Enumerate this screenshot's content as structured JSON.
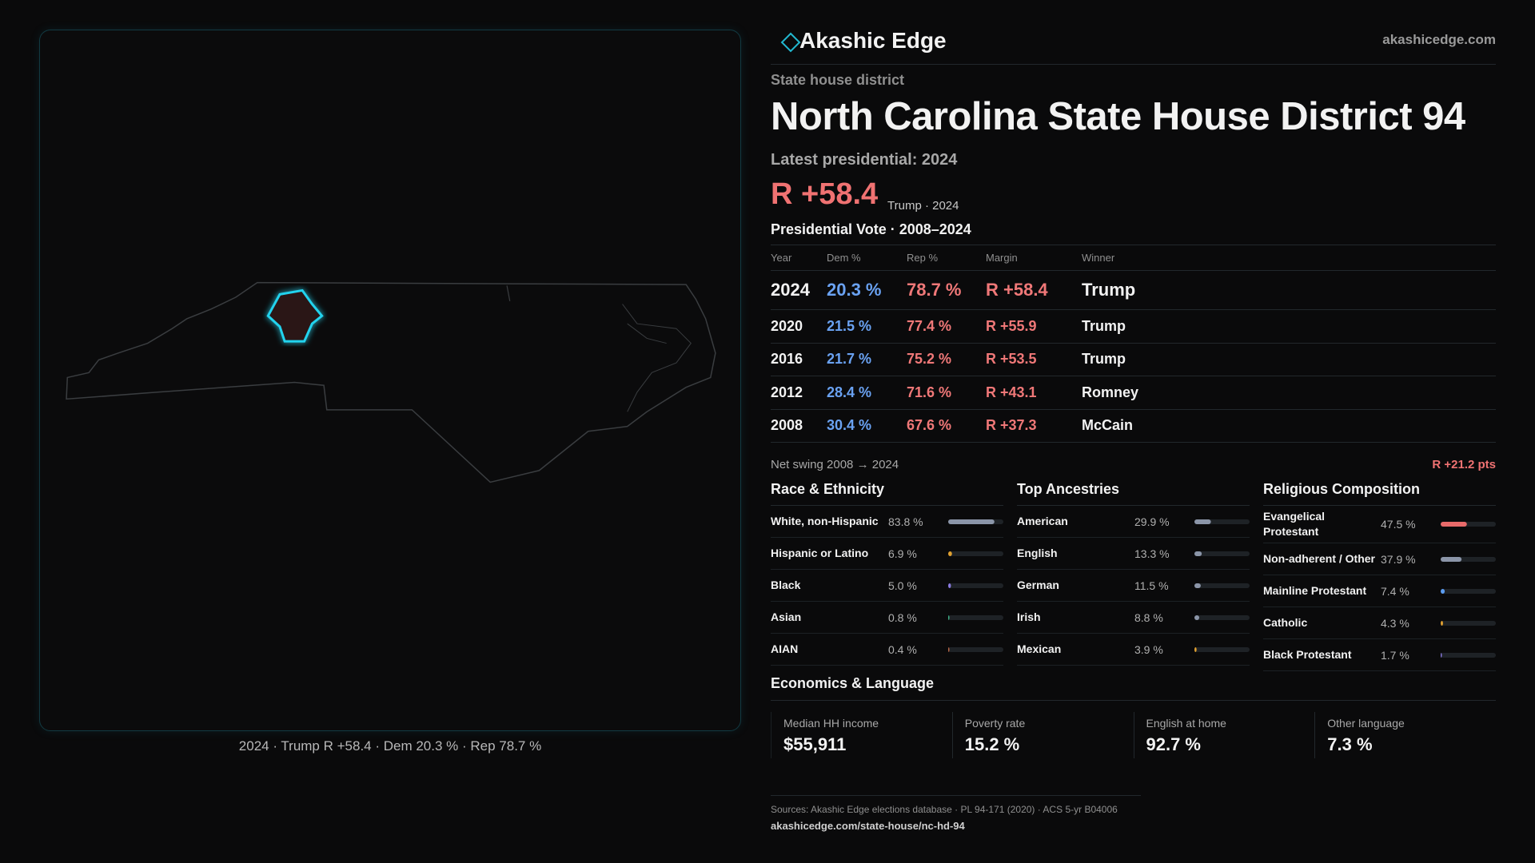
{
  "header": {
    "brand": "Akashic Edge",
    "site": "akashicedge.com"
  },
  "district": {
    "kind": "State house district",
    "title": "North Carolina State House District 94",
    "latest_label": "Latest presidential: 2024",
    "margin": "R +58.4",
    "margin_note": "Trump · 2024"
  },
  "map": {
    "caption": "2024 · Trump R +58.4 · Dem 20.3 % · Rep 78.7 %"
  },
  "vote_table": {
    "title": "Presidential Vote · 2008–2024",
    "columns": [
      "Year",
      "Dem %",
      "Rep %",
      "Margin",
      "Winner"
    ],
    "rows": [
      [
        "2024",
        "20.3 %",
        "78.7 %",
        "R +58.4",
        "Trump"
      ],
      [
        "2020",
        "21.5 %",
        "77.4 %",
        "R +55.9",
        "Trump"
      ],
      [
        "2016",
        "21.7 %",
        "75.2 %",
        "R +53.5",
        "Trump"
      ],
      [
        "2012",
        "28.4 %",
        "71.6 %",
        "R +43.1",
        "Romney"
      ],
      [
        "2008",
        "30.4 %",
        "67.6 %",
        "R +37.3",
        "McCain"
      ]
    ]
  },
  "net_swing": {
    "label": "Net swing 2008 → 2024",
    "value": "R +21.2 pts"
  },
  "race": {
    "title": "Race & Ethnicity",
    "rows": [
      {
        "name": "White, non-Hispanic",
        "value": 83.8,
        "label": "83.8 %",
        "color": "#8b95a8"
      },
      {
        "name": "Hispanic or Latino",
        "value": 6.9,
        "label": "6.9 %",
        "color": "#e0a030"
      },
      {
        "name": "Black",
        "value": 5.0,
        "label": "5.0 %",
        "color": "#8a7ae0"
      },
      {
        "name": "Asian",
        "value": 0.8,
        "label": "0.8 %",
        "color": "#3fb58a"
      },
      {
        "name": "AIAN",
        "value": 0.4,
        "label": "0.4 %",
        "color": "#c06a4a"
      }
    ]
  },
  "ancestry": {
    "title": "Top Ancestries",
    "rows": [
      {
        "name": "American",
        "value": 29.9,
        "label": "29.9 %",
        "color": "#8b95a8"
      },
      {
        "name": "English",
        "value": 13.3,
        "label": "13.3 %",
        "color": "#8b95a8"
      },
      {
        "name": "German",
        "value": 11.5,
        "label": "11.5 %",
        "color": "#8b95a8"
      },
      {
        "name": "Irish",
        "value": 8.8,
        "label": "8.8 %",
        "color": "#8b95a8"
      },
      {
        "name": "Mexican",
        "value": 3.9,
        "label": "3.9 %",
        "color": "#e0a030"
      }
    ]
  },
  "religion": {
    "title": "Religious Composition",
    "rows": [
      {
        "name": "Evangelical Protestant",
        "value": 47.5,
        "label": "47.5 %",
        "color": "#e86a6a"
      },
      {
        "name": "Non-adherent / Other",
        "value": 37.9,
        "label": "37.9 %",
        "color": "#8b95a8"
      },
      {
        "name": "Mainline Protestant",
        "value": 7.4,
        "label": "7.4 %",
        "color": "#5b9cf0"
      },
      {
        "name": "Catholic",
        "value": 4.3,
        "label": "4.3 %",
        "color": "#e0a030"
      },
      {
        "name": "Black Protestant",
        "value": 1.7,
        "label": "1.7 %",
        "color": "#8a7ae0"
      }
    ]
  },
  "economics": {
    "title": "Economics & Language",
    "cards": [
      {
        "label": "Median HH income",
        "value": "$55,911"
      },
      {
        "label": "Poverty rate",
        "value": "15.2 %"
      },
      {
        "label": "English at home",
        "value": "92.7 %"
      },
      {
        "label": "Other language",
        "value": "7.3 %"
      }
    ]
  },
  "footer": {
    "sources": "Sources: Akashic Edge elections database · PL 94-171 (2020) · ACS 5-yr B04006",
    "url": "akashicedge.com/state-house/nc-hd-94"
  }
}
